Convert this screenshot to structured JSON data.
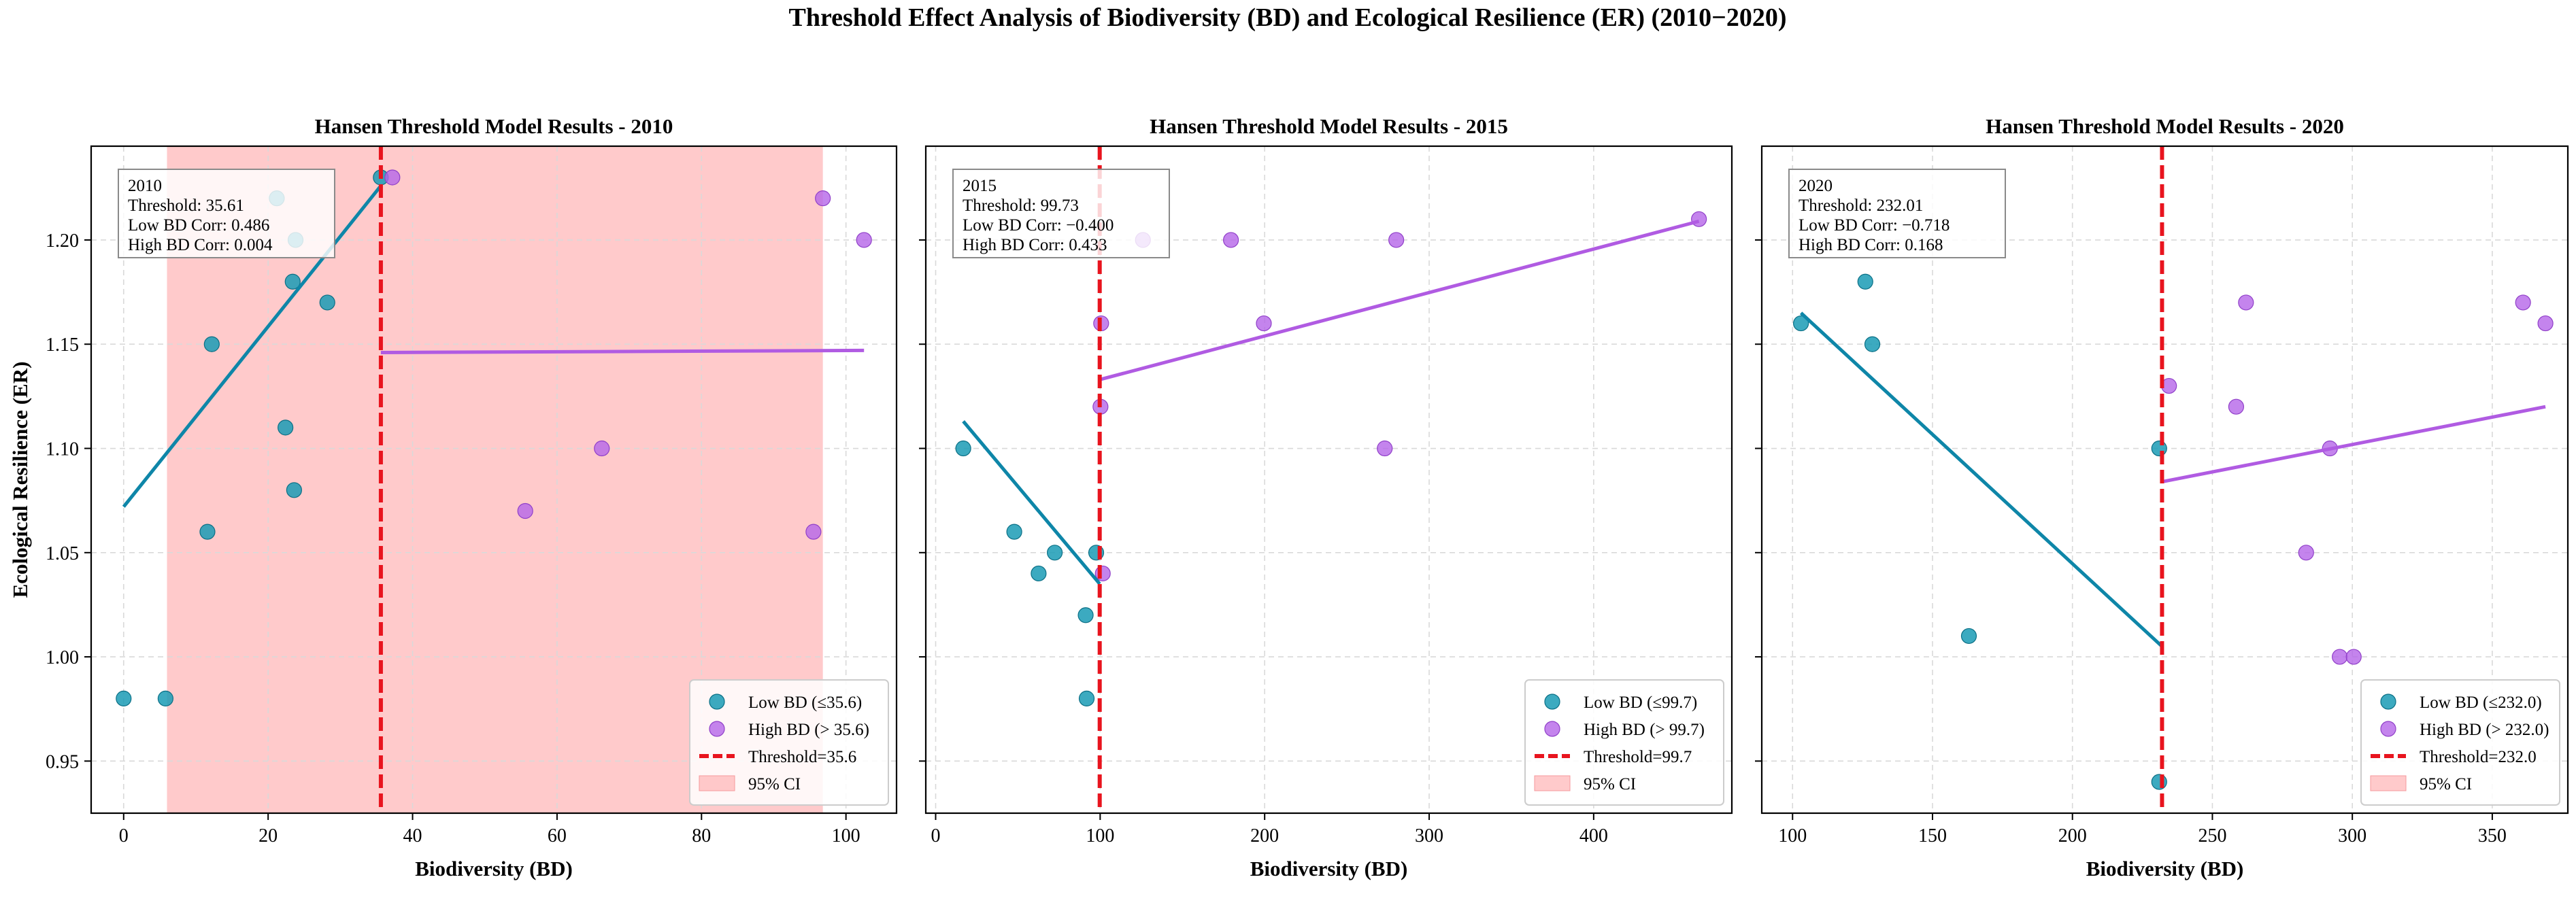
{
  "figure": {
    "title": "Threshold Effect Analysis of Biodiversity (BD) and Ecological Resilience (ER) (2010−2020)",
    "colors": {
      "low": "#1a9bb5",
      "high": "#b565e8",
      "fit_low": "#0e86a8",
      "fit_high": "#b05be2",
      "threshold": "#e8141e",
      "ci": "#ffb3b5",
      "grid": "#d9d9d9"
    }
  },
  "chart_data": [
    {
      "type": "scatter",
      "title": "Hansen Threshold Model Results - 2010",
      "xlabel": "Biodiversity (BD)",
      "ylabel": "Ecological Resilience (ER)",
      "xlim": [
        -4.5,
        107
      ],
      "ylim": [
        0.925,
        1.245
      ],
      "xticks": [
        0,
        20,
        40,
        60,
        80,
        100
      ],
      "yticks": [
        0.95,
        1.0,
        1.05,
        1.1,
        1.15,
        1.2
      ],
      "ytick_labels": [
        "0.95",
        "1.00",
        "1.05",
        "1.10",
        "1.15",
        "1.20"
      ],
      "threshold": 35.61,
      "ci": [
        6.0,
        96.8
      ],
      "annotation": [
        "2010",
        "Threshold: 35.61",
        "Low BD Corr: 0.486",
        "High BD Corr: 0.004"
      ],
      "legend": [
        "Low BD (≤35.6)",
        "High BD (> 35.6)",
        "Threshold=35.6",
        "95% CI"
      ],
      "low_points": [
        [
          0,
          0.98
        ],
        [
          5.8,
          0.98
        ],
        [
          11.6,
          1.06
        ],
        [
          12.2,
          1.15
        ],
        [
          21.2,
          1.22
        ],
        [
          22.4,
          1.11
        ],
        [
          23.4,
          1.18
        ],
        [
          23.6,
          1.08
        ],
        [
          23.8,
          1.2
        ],
        [
          28.2,
          1.17
        ],
        [
          35.6,
          1.23
        ]
      ],
      "high_points": [
        [
          37.2,
          1.23
        ],
        [
          55.6,
          1.07
        ],
        [
          66.2,
          1.1
        ],
        [
          95.5,
          1.06
        ],
        [
          96.8,
          1.22
        ],
        [
          102.5,
          1.2
        ]
      ],
      "low_fit": [
        [
          0,
          1.072
        ],
        [
          35.61,
          1.226
        ]
      ],
      "high_fit": [
        [
          35.61,
          1.146
        ],
        [
          102.5,
          1.147
        ]
      ]
    },
    {
      "type": "scatter",
      "title": "Hansen Threshold Model Results - 2015",
      "xlabel": "Biodiversity (BD)",
      "ylabel": "",
      "xlim": [
        -6,
        484
      ],
      "ylim": [
        0.925,
        1.245
      ],
      "xticks": [
        0,
        100,
        200,
        300,
        400
      ],
      "yticks": [
        0.95,
        1.0,
        1.05,
        1.1,
        1.15,
        1.2
      ],
      "ytick_labels": [
        "",
        "",
        "",
        "",
        "",
        ""
      ],
      "threshold": 99.73,
      "ci": null,
      "annotation": [
        "2015",
        "Threshold: 99.73",
        "Low BD Corr: −0.400",
        "High BD Corr: 0.433"
      ],
      "legend": [
        "Low BD (≤99.7)",
        "High BD (> 99.7)",
        "Threshold=99.7",
        "95% CI"
      ],
      "low_points": [
        [
          16.8,
          1.1
        ],
        [
          47.8,
          1.06
        ],
        [
          62.6,
          1.04
        ],
        [
          72.4,
          1.05
        ],
        [
          91.2,
          1.02
        ],
        [
          91.8,
          0.98
        ],
        [
          97.6,
          1.05
        ]
      ],
      "high_points": [
        [
          100.6,
          1.16
        ],
        [
          100.2,
          1.12
        ],
        [
          101.6,
          1.04
        ],
        [
          126,
          1.2
        ],
        [
          179.5,
          1.2
        ],
        [
          199.5,
          1.16
        ],
        [
          273,
          1.1
        ],
        [
          280,
          1.2
        ],
        [
          464,
          1.21
        ]
      ],
      "low_fit": [
        [
          16.8,
          1.113
        ],
        [
          99.73,
          1.035
        ]
      ],
      "high_fit": [
        [
          99.73,
          1.133
        ],
        [
          464,
          1.209
        ]
      ]
    },
    {
      "type": "scatter",
      "title": "Hansen Threshold Model Results - 2020",
      "xlabel": "Biodiversity (BD)",
      "ylabel": "",
      "xlim": [
        89,
        377
      ],
      "ylim": [
        0.925,
        1.245
      ],
      "xticks": [
        100,
        150,
        200,
        250,
        300,
        350
      ],
      "yticks": [
        0.95,
        1.0,
        1.05,
        1.1,
        1.15,
        1.2
      ],
      "ytick_labels": [
        "",
        "",
        "",
        "",
        "",
        ""
      ],
      "threshold": 232.01,
      "ci": null,
      "annotation": [
        "2020",
        "Threshold: 232.01",
        "Low BD Corr: −0.718",
        "High BD Corr: 0.168"
      ],
      "legend": [
        "Low BD (≤232.0)",
        "High BD (> 232.0)",
        "Threshold=232.0",
        "95% CI"
      ],
      "low_points": [
        [
          103,
          1.16
        ],
        [
          126,
          1.18
        ],
        [
          128.5,
          1.15
        ],
        [
          163,
          1.01
        ],
        [
          231,
          1.1
        ],
        [
          231,
          0.94
        ]
      ],
      "high_points": [
        [
          234.5,
          1.13
        ],
        [
          258.5,
          1.12
        ],
        [
          262,
          1.17
        ],
        [
          283.5,
          1.05
        ],
        [
          292,
          1.1
        ],
        [
          295.5,
          1.0
        ],
        [
          300.5,
          1.0
        ],
        [
          361,
          1.17
        ],
        [
          369,
          1.16
        ]
      ],
      "low_fit": [
        [
          103,
          1.165
        ],
        [
          232.01,
          1.005
        ]
      ],
      "high_fit": [
        [
          232.01,
          1.084
        ],
        [
          369,
          1.12
        ]
      ]
    }
  ]
}
